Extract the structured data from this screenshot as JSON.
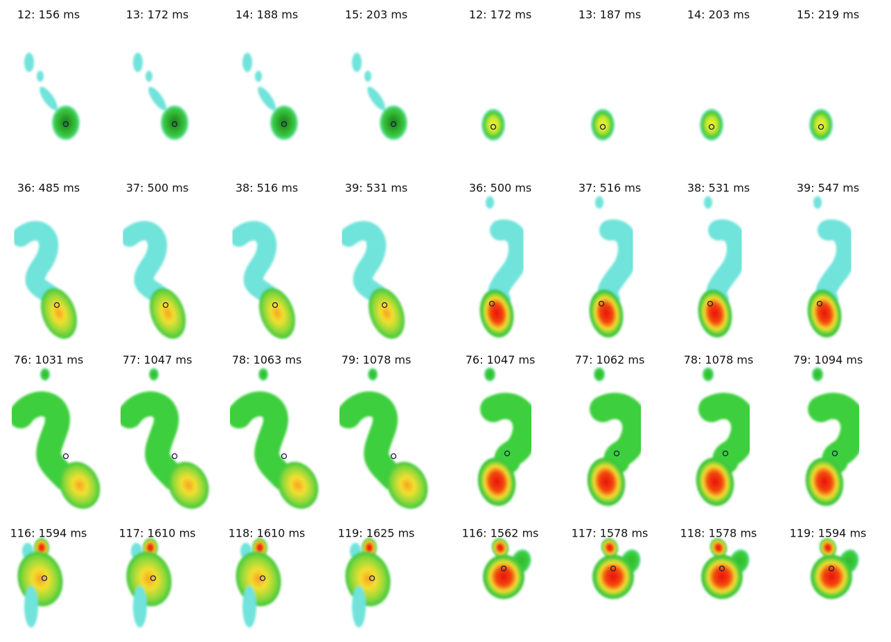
{
  "rows": [
    [
      "12: 156 ms",
      "13: 172 ms",
      "14: 188 ms",
      "15: 203 ms",
      "12: 172 ms",
      "13: 187 ms",
      "14: 203 ms",
      "15: 219 ms"
    ],
    [
      "36: 485 ms",
      "37: 500 ms",
      "38: 516 ms",
      "39: 531 ms",
      "36: 500 ms",
      "37: 516 ms",
      "38: 531 ms",
      "39: 547 ms"
    ],
    [
      "76: 1031 ms",
      "77: 1047 ms",
      "78: 1063 ms",
      "79: 1078 ms",
      "76: 1047 ms",
      "77: 1062 ms",
      "78: 1078 ms",
      "79: 1094 ms"
    ],
    [
      "116: 1594 ms",
      "117: 1610 ms",
      "118: 1610 ms",
      "119: 1625 ms",
      "116: 1562 ms",
      "117: 1578 ms",
      "118: 1578 ms",
      "119: 1594 ms"
    ]
  ]
}
